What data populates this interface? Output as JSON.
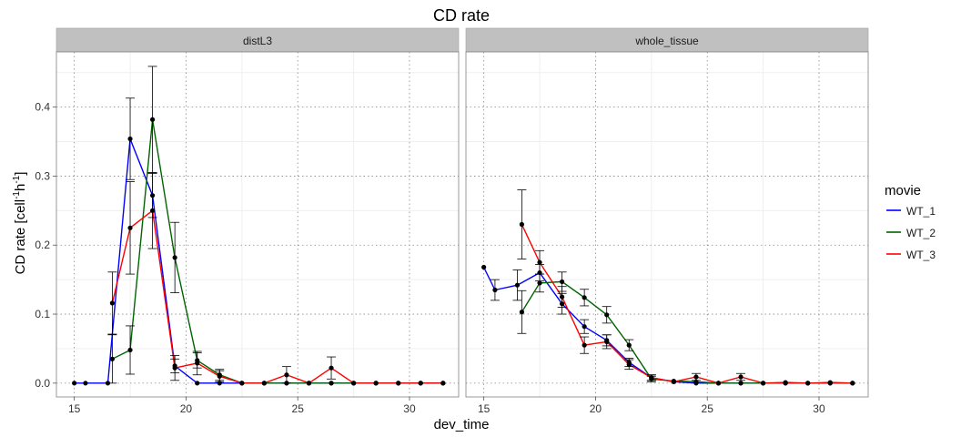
{
  "chart_data": {
    "type": "line",
    "title": "CD rate",
    "xlabel": "dev_time",
    "ylabel_main": "CD rate [cell",
    "ylabel_sup1": "-1",
    "ylabel_mid": "h",
    "ylabel_sup2": "-1",
    "ylabel_end": "]",
    "xlim": [
      14.2,
      32.2
    ],
    "ylim": [
      -0.02,
      0.48
    ],
    "x_ticks": [
      15,
      20,
      25,
      30
    ],
    "x_tick_labels": [
      "15",
      "20",
      "25",
      "30"
    ],
    "y_ticks": [
      0.0,
      0.1,
      0.2,
      0.3,
      0.4
    ],
    "y_tick_labels": [
      "0.0",
      "0.1",
      "0.2",
      "0.3",
      "0.4"
    ],
    "grid": true,
    "legend": {
      "title": "movie",
      "position": "right",
      "entries": [
        "WT_1",
        "WT_2",
        "WT_3"
      ]
    },
    "colors": {
      "WT_1": "#0000ff",
      "WT_2": "#006400",
      "WT_3": "#ff0000"
    },
    "panels": [
      {
        "label": "distL3",
        "series": [
          {
            "name": "WT_1",
            "points": [
              {
                "x": 15.0,
                "y": 0.0
              },
              {
                "x": 15.5,
                "y": 0.0
              },
              {
                "x": 16.5,
                "y": 0.0
              },
              {
                "x": 17.5,
                "y": 0.354,
                "lo": 0.295,
                "hi": 0.413
              },
              {
                "x": 18.5,
                "y": 0.272,
                "lo": 0.24,
                "hi": 0.304
              },
              {
                "x": 19.5,
                "y": 0.025,
                "lo": 0.015,
                "hi": 0.035
              },
              {
                "x": 20.5,
                "y": 0.0
              },
              {
                "x": 21.5,
                "y": 0.0
              },
              {
                "x": 22.5,
                "y": 0.0
              },
              {
                "x": 23.5,
                "y": 0.0
              },
              {
                "x": 24.5,
                "y": 0.0
              },
              {
                "x": 25.5,
                "y": 0.0
              },
              {
                "x": 26.5,
                "y": 0.0
              },
              {
                "x": 27.5,
                "y": 0.0
              },
              {
                "x": 28.5,
                "y": 0.0
              },
              {
                "x": 29.5,
                "y": 0.0
              },
              {
                "x": 30.5,
                "y": 0.0
              },
              {
                "x": 31.5,
                "y": 0.0
              }
            ]
          },
          {
            "name": "WT_2",
            "points": [
              {
                "x": 16.7,
                "y": 0.035,
                "lo": 0.0,
                "hi": 0.07
              },
              {
                "x": 17.5,
                "y": 0.048,
                "lo": 0.013,
                "hi": 0.083
              },
              {
                "x": 18.5,
                "y": 0.382,
                "lo": 0.305,
                "hi": 0.459
              },
              {
                "x": 19.5,
                "y": 0.182,
                "lo": 0.131,
                "hi": 0.233
              },
              {
                "x": 20.5,
                "y": 0.033,
                "lo": 0.022,
                "hi": 0.044
              },
              {
                "x": 21.5,
                "y": 0.012,
                "lo": 0.004,
                "hi": 0.02
              },
              {
                "x": 22.5,
                "y": 0.0
              },
              {
                "x": 23.5,
                "y": 0.0
              },
              {
                "x": 24.5,
                "y": 0.0
              },
              {
                "x": 25.5,
                "y": 0.0
              },
              {
                "x": 26.5,
                "y": 0.0
              },
              {
                "x": 27.5,
                "y": 0.0
              },
              {
                "x": 28.5,
                "y": 0.0
              },
              {
                "x": 29.5,
                "y": 0.0
              },
              {
                "x": 30.5,
                "y": 0.0
              },
              {
                "x": 31.5,
                "y": 0.0
              }
            ]
          },
          {
            "name": "WT_3",
            "points": [
              {
                "x": 16.7,
                "y": 0.116,
                "lo": 0.071,
                "hi": 0.161
              },
              {
                "x": 17.5,
                "y": 0.225,
                "lo": 0.158,
                "hi": 0.292
              },
              {
                "x": 18.5,
                "y": 0.25,
                "lo": 0.195,
                "hi": 0.305
              },
              {
                "x": 19.5,
                "y": 0.022,
                "lo": 0.004,
                "hi": 0.04
              },
              {
                "x": 20.5,
                "y": 0.029,
                "lo": 0.012,
                "hi": 0.046
              },
              {
                "x": 21.5,
                "y": 0.01,
                "lo": 0.002,
                "hi": 0.018
              },
              {
                "x": 22.5,
                "y": 0.0
              },
              {
                "x": 23.5,
                "y": 0.0
              },
              {
                "x": 24.5,
                "y": 0.012,
                "lo": 0.0,
                "hi": 0.024
              },
              {
                "x": 25.5,
                "y": 0.0
              },
              {
                "x": 26.5,
                "y": 0.022,
                "lo": 0.006,
                "hi": 0.038
              },
              {
                "x": 27.5,
                "y": 0.0
              },
              {
                "x": 28.5,
                "y": 0.0
              },
              {
                "x": 29.5,
                "y": 0.0
              },
              {
                "x": 30.5,
                "y": 0.0
              },
              {
                "x": 31.5,
                "y": 0.0
              }
            ]
          }
        ]
      },
      {
        "label": "whole_tissue",
        "series": [
          {
            "name": "WT_1",
            "points": [
              {
                "x": 15.0,
                "y": 0.168
              },
              {
                "x": 15.5,
                "y": 0.135,
                "lo": 0.12,
                "hi": 0.15
              },
              {
                "x": 16.5,
                "y": 0.142,
                "lo": 0.12,
                "hi": 0.164
              },
              {
                "x": 17.5,
                "y": 0.16,
                "lo": 0.148,
                "hi": 0.172
              },
              {
                "x": 18.5,
                "y": 0.115,
                "lo": 0.1,
                "hi": 0.13
              },
              {
                "x": 19.5,
                "y": 0.082,
                "lo": 0.072,
                "hi": 0.092
              },
              {
                "x": 20.5,
                "y": 0.062,
                "lo": 0.054,
                "hi": 0.07
              },
              {
                "x": 21.5,
                "y": 0.03,
                "lo": 0.024,
                "hi": 0.036
              },
              {
                "x": 22.5,
                "y": 0.008,
                "lo": 0.004,
                "hi": 0.012
              },
              {
                "x": 23.5,
                "y": 0.002
              },
              {
                "x": 24.5,
                "y": 0.0
              },
              {
                "x": 25.5,
                "y": 0.0
              },
              {
                "x": 26.5,
                "y": 0.0
              },
              {
                "x": 27.5,
                "y": 0.0
              },
              {
                "x": 28.5,
                "y": 0.0
              },
              {
                "x": 29.5,
                "y": 0.0
              },
              {
                "x": 30.5,
                "y": 0.0
              },
              {
                "x": 31.5,
                "y": 0.0
              }
            ]
          },
          {
            "name": "WT_2",
            "points": [
              {
                "x": 16.7,
                "y": 0.103,
                "lo": 0.072,
                "hi": 0.134
              },
              {
                "x": 17.5,
                "y": 0.145,
                "lo": 0.132,
                "hi": 0.158
              },
              {
                "x": 18.5,
                "y": 0.147,
                "lo": 0.133,
                "hi": 0.161
              },
              {
                "x": 19.5,
                "y": 0.124,
                "lo": 0.112,
                "hi": 0.136
              },
              {
                "x": 20.5,
                "y": 0.099,
                "lo": 0.087,
                "hi": 0.111
              },
              {
                "x": 21.5,
                "y": 0.055,
                "lo": 0.047,
                "hi": 0.063
              },
              {
                "x": 22.5,
                "y": 0.006,
                "lo": 0.002,
                "hi": 0.01
              },
              {
                "x": 23.5,
                "y": 0.003
              },
              {
                "x": 24.5,
                "y": 0.002
              },
              {
                "x": 25.5,
                "y": 0.0
              },
              {
                "x": 26.5,
                "y": 0.0
              },
              {
                "x": 27.5,
                "y": 0.0
              },
              {
                "x": 28.5,
                "y": 0.001
              },
              {
                "x": 29.5,
                "y": 0.0
              },
              {
                "x": 30.5,
                "y": 0.001
              },
              {
                "x": 31.5,
                "y": 0.0
              }
            ]
          },
          {
            "name": "WT_3",
            "points": [
              {
                "x": 16.7,
                "y": 0.23,
                "lo": 0.18,
                "hi": 0.28
              },
              {
                "x": 17.5,
                "y": 0.175,
                "lo": 0.158,
                "hi": 0.192
              },
              {
                "x": 18.5,
                "y": 0.125,
                "lo": 0.11,
                "hi": 0.14
              },
              {
                "x": 19.5,
                "y": 0.055,
                "lo": 0.043,
                "hi": 0.067
              },
              {
                "x": 20.5,
                "y": 0.06,
                "lo": 0.05,
                "hi": 0.07
              },
              {
                "x": 21.5,
                "y": 0.027,
                "lo": 0.02,
                "hi": 0.034
              },
              {
                "x": 22.5,
                "y": 0.008,
                "lo": 0.004,
                "hi": 0.012
              },
              {
                "x": 23.5,
                "y": 0.002
              },
              {
                "x": 24.5,
                "y": 0.009,
                "lo": 0.004,
                "hi": 0.014
              },
              {
                "x": 25.5,
                "y": 0.0
              },
              {
                "x": 26.5,
                "y": 0.009,
                "lo": 0.004,
                "hi": 0.014
              },
              {
                "x": 27.5,
                "y": 0.0
              },
              {
                "x": 28.5,
                "y": 0.0
              },
              {
                "x": 29.5,
                "y": 0.0
              },
              {
                "x": 30.5,
                "y": 0.0
              },
              {
                "x": 31.5,
                "y": 0.0
              }
            ]
          }
        ]
      }
    ]
  }
}
